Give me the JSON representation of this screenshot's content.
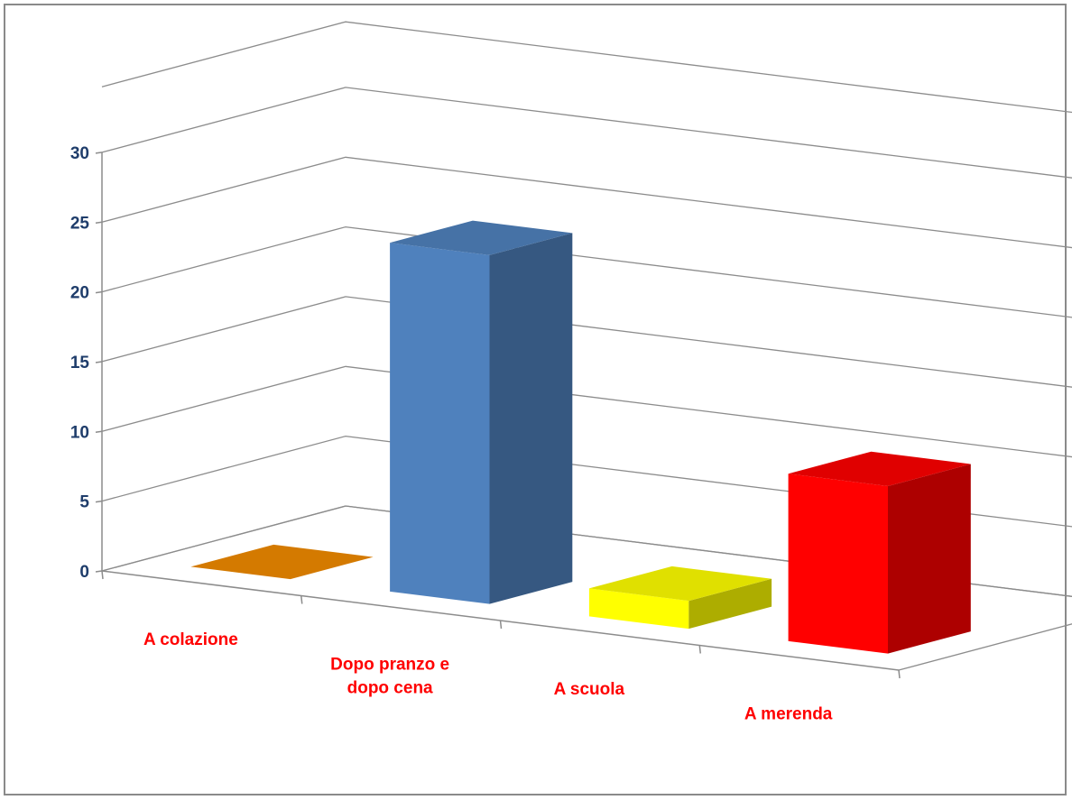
{
  "chart_data": {
    "type": "bar",
    "three_d": true,
    "categories": [
      "A colazione",
      "Dopo pranzo e dopo cena",
      "A scuola",
      "A merenda"
    ],
    "category_label_lines": [
      [
        "A colazione"
      ],
      [
        "Dopo pranzo  e",
        "dopo cena"
      ],
      [
        "A scuola"
      ],
      [
        "A merenda"
      ]
    ],
    "values": [
      0,
      25,
      2,
      12
    ],
    "bar_colors": [
      "#d47a00",
      "#4f81bd",
      "#ffff00",
      "#ff0000"
    ],
    "ylim": [
      0,
      30
    ],
    "yticks": [
      0,
      5,
      10,
      15,
      20,
      25,
      30
    ],
    "title": "",
    "xlabel": "",
    "ylabel": "",
    "grid": true,
    "legend": "none",
    "tick_label_color": "#1f3d6b",
    "category_label_color": "#ff0000"
  }
}
